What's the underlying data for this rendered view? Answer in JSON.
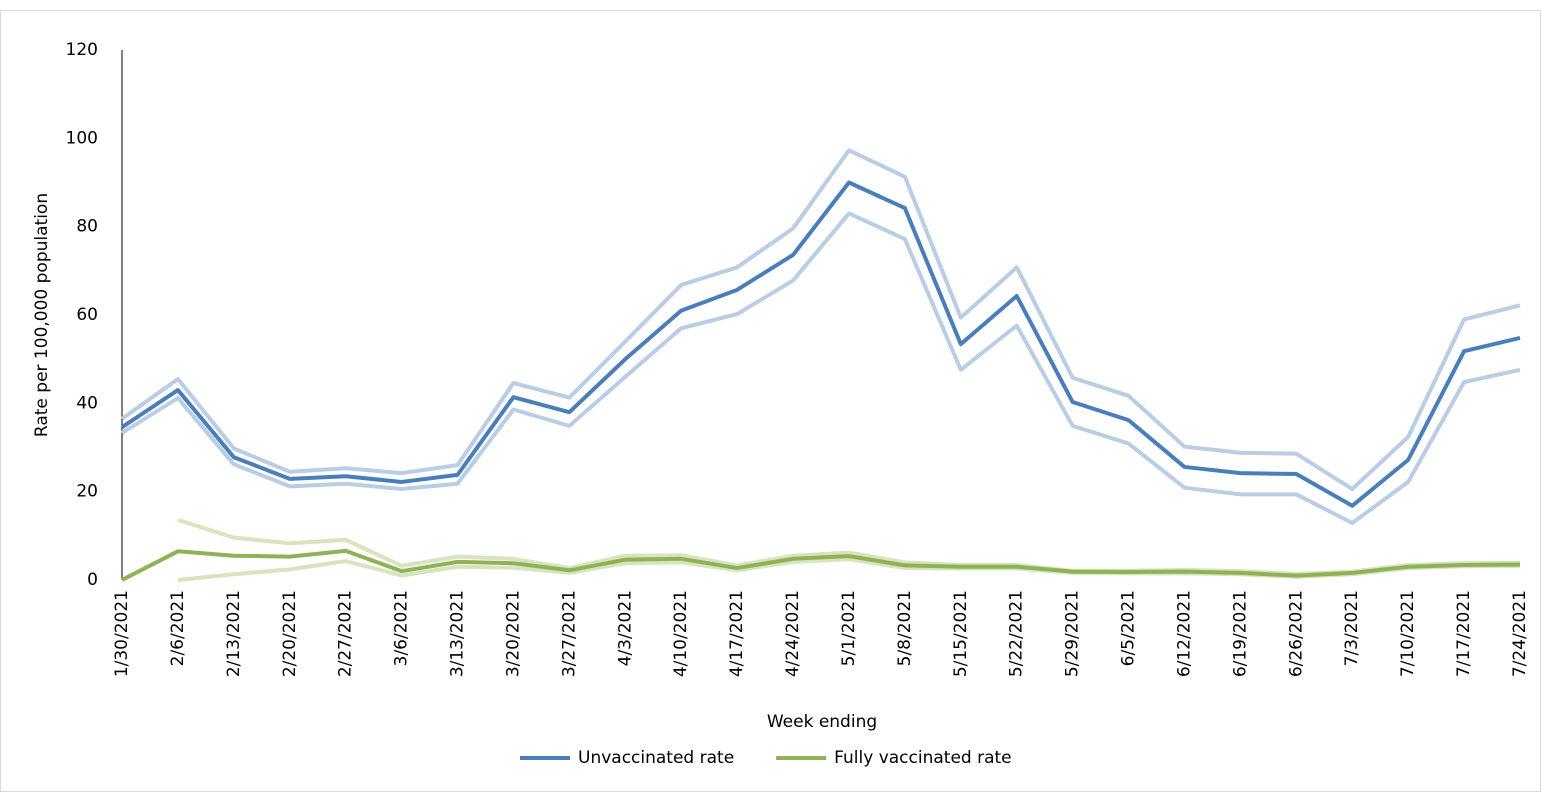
{
  "chart_data": {
    "type": "line",
    "x_label": "Week ending",
    "y_label": "Rate per 100,000 population",
    "categories": [
      "1/30/2021",
      "2/6/2021",
      "2/13/2021",
      "2/20/2021",
      "2/27/2021",
      "3/6/2021",
      "3/13/2021",
      "3/20/2021",
      "3/27/2021",
      "4/3/2021",
      "4/10/2021",
      "4/17/2021",
      "4/24/2021",
      "5/1/2021",
      "5/8/2021",
      "5/15/2021",
      "5/22/2021",
      "5/29/2021",
      "6/5/2021",
      "6/12/2021",
      "6/19/2021",
      "6/26/2021",
      "7/3/2021",
      "7/10/2021",
      "7/17/2021",
      "7/24/2021"
    ],
    "series": [
      {
        "name": "Unvaccinated rate",
        "color": "#4a7ebb",
        "band_color": "#b9cde5",
        "values": [
          34.6,
          43,
          27.8,
          22.9,
          23.5,
          22.2,
          23.8,
          41.4,
          38,
          50,
          61,
          65.7,
          73.6,
          90,
          84.2,
          53.4,
          64.3,
          40.3,
          36.2,
          25.6,
          24.2,
          24,
          16.8,
          27.2,
          51.8,
          54.8
        ],
        "upper": [
          36.5,
          45.5,
          29.8,
          24.5,
          25.3,
          24.2,
          26,
          44.6,
          41.3,
          54,
          66.8,
          70.8,
          79.6,
          97.3,
          91.3,
          59.4,
          70.8,
          45.8,
          41.7,
          30.2,
          28.8,
          28.6,
          20.6,
          32.4,
          59,
          62.2
        ],
        "lower": [
          33.3,
          41.2,
          26.2,
          21.2,
          21.8,
          20.6,
          21.8,
          38.6,
          34.9,
          46,
          57,
          60.2,
          67.8,
          83,
          77.2,
          47.6,
          57.6,
          34.9,
          30.9,
          20.9,
          19.4,
          19.4,
          12.9,
          22.2,
          44.8,
          47.6
        ]
      },
      {
        "name": "Fully vaccinated rate",
        "color": "#8db356",
        "band_color": "#d7e4bd",
        "values": [
          0,
          6.5,
          5.5,
          5.3,
          6.6,
          2,
          4.1,
          3.8,
          2.2,
          4.6,
          4.8,
          2.7,
          4.8,
          5.4,
          3.3,
          3,
          3,
          1.9,
          1.8,
          1.9,
          1.6,
          1,
          1.6,
          3,
          3.4,
          3.5
        ],
        "upper": [
          null,
          13.6,
          9.6,
          8.3,
          9.1,
          3.2,
          5.3,
          4.8,
          2.7,
          5.5,
          5.6,
          3.3,
          5.5,
          6.2,
          4,
          3.4,
          3.4,
          2.1,
          2.1,
          2.3,
          2,
          1.4,
          1.9,
          3.4,
          3.8,
          3.9
        ],
        "lower": [
          null,
          0,
          1.3,
          2.4,
          4.3,
          1,
          3,
          2.8,
          1.6,
          3.8,
          4,
          2.2,
          4.1,
          4.7,
          2.7,
          2.6,
          2.6,
          1.6,
          1.5,
          1.5,
          1.3,
          0.7,
          1.3,
          2.7,
          3.1,
          3.2
        ]
      }
    ],
    "ylim": [
      0,
      120
    ],
    "yticks": [
      0,
      20,
      40,
      60,
      80,
      100,
      120
    ],
    "grid": false,
    "legend": "bottom"
  }
}
